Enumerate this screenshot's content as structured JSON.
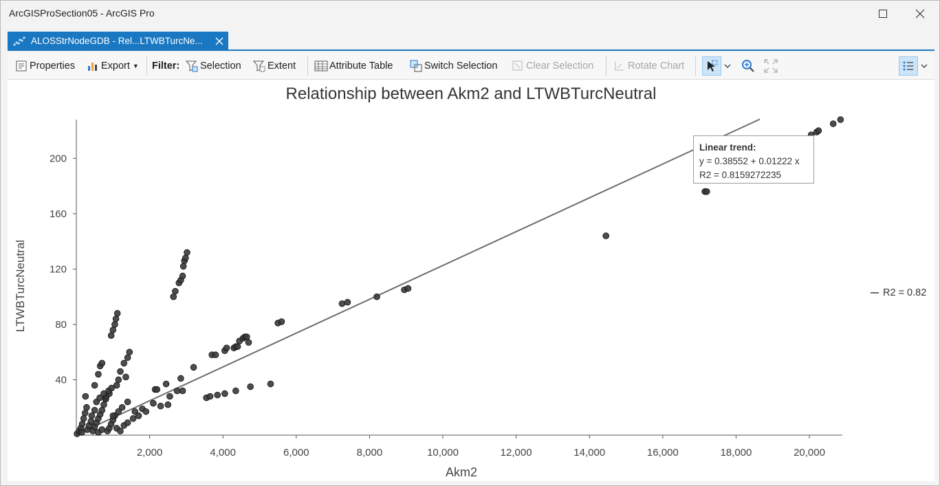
{
  "window": {
    "title": "ArcGISProSection05 - ArcGIS Pro"
  },
  "tab": {
    "label": "ALOSStrNodeGDB - Rel...LTWBTurcNe..."
  },
  "toolbar": {
    "properties": "Properties",
    "export": "Export",
    "filter_label": "Filter:",
    "selection": "Selection",
    "extent": "Extent",
    "attribute_table": "Attribute Table",
    "switch_selection": "Switch Selection",
    "clear_selection": "Clear Selection",
    "rotate_chart": "Rotate Chart"
  },
  "colors": {
    "accent": "#1a78c2",
    "point": "#3a3a3a",
    "trend": "#6e6e6e"
  },
  "trend": {
    "tooltip_title": "Linear trend:",
    "equation": "y = 0.38552 + 0.01222 x",
    "r2_full": "R2 = 0.8159272235",
    "legend": "R2 = 0.82",
    "intercept": 0.38552,
    "slope": 0.01222
  },
  "chart_data": {
    "type": "scatter",
    "title": "Relationship between Akm2 and LTWBTurcNeutral",
    "xlabel": "Akm2",
    "ylabel": "LTWBTurcNeutral",
    "xlim": [
      0,
      20900
    ],
    "ylim": [
      0,
      228
    ],
    "xticks": [
      2000,
      4000,
      6000,
      8000,
      10000,
      12000,
      14000,
      16000,
      18000,
      20000
    ],
    "xtick_labels": [
      "2,000",
      "4,000",
      "6,000",
      "8,000",
      "10,000",
      "12,000",
      "14,000",
      "16,000",
      "18,000",
      "20,000"
    ],
    "yticks": [
      40,
      80,
      120,
      160,
      200
    ],
    "ytick_labels": [
      "40",
      "80",
      "120",
      "160",
      "200"
    ],
    "trendline": {
      "x": [
        0,
        18650
      ],
      "y": [
        0.39,
        228.3
      ]
    },
    "points": [
      [
        20,
        1
      ],
      [
        80,
        3
      ],
      [
        120,
        5
      ],
      [
        160,
        8
      ],
      [
        200,
        12
      ],
      [
        240,
        16
      ],
      [
        280,
        20
      ],
      [
        150,
        2
      ],
      [
        300,
        4
      ],
      [
        350,
        7
      ],
      [
        400,
        10
      ],
      [
        420,
        14
      ],
      [
        450,
        3
      ],
      [
        500,
        6
      ],
      [
        550,
        9
      ],
      [
        600,
        12
      ],
      [
        650,
        15
      ],
      [
        700,
        18
      ],
      [
        750,
        22
      ],
      [
        800,
        26
      ],
      [
        850,
        3
      ],
      [
        900,
        5
      ],
      [
        950,
        8
      ],
      [
        1000,
        11
      ],
      [
        1050,
        14
      ],
      [
        1150,
        17
      ],
      [
        1250,
        20
      ],
      [
        1400,
        24
      ],
      [
        1600,
        17
      ],
      [
        1800,
        19
      ],
      [
        1100,
        5
      ],
      [
        1300,
        7
      ],
      [
        1400,
        9
      ],
      [
        1200,
        3
      ],
      [
        600,
        2
      ],
      [
        700,
        4
      ],
      [
        250,
        28
      ],
      [
        500,
        36
      ],
      [
        600,
        44
      ],
      [
        650,
        50
      ],
      [
        700,
        52
      ],
      [
        800,
        26
      ],
      [
        820,
        28
      ],
      [
        900,
        30
      ],
      [
        1000,
        14
      ],
      [
        1100,
        36
      ],
      [
        1200,
        46
      ],
      [
        1300,
        52
      ],
      [
        1400,
        56
      ],
      [
        1450,
        60
      ],
      [
        950,
        72
      ],
      [
        1000,
        76
      ],
      [
        1050,
        80
      ],
      [
        1080,
        84
      ],
      [
        1120,
        88
      ],
      [
        1150,
        40
      ],
      [
        1350,
        42
      ],
      [
        2650,
        100
      ],
      [
        2700,
        104
      ],
      [
        2800,
        110
      ],
      [
        2850,
        112
      ],
      [
        2900,
        115
      ],
      [
        2920,
        122
      ],
      [
        2950,
        126
      ],
      [
        2980,
        128
      ],
      [
        3020,
        132
      ],
      [
        2100,
        23
      ],
      [
        2150,
        33
      ],
      [
        2200,
        33
      ],
      [
        2450,
        37
      ],
      [
        2500,
        22
      ],
      [
        2550,
        28
      ],
      [
        2750,
        32
      ],
      [
        2850,
        41
      ],
      [
        2900,
        32
      ],
      [
        3200,
        49
      ],
      [
        3550,
        27
      ],
      [
        3650,
        28
      ],
      [
        3700,
        58
      ],
      [
        3800,
        58
      ],
      [
        3850,
        29
      ],
      [
        4050,
        30
      ],
      [
        4050,
        61
      ],
      [
        4100,
        63
      ],
      [
        4300,
        63
      ],
      [
        4350,
        64
      ],
      [
        4400,
        64
      ],
      [
        4450,
        68
      ],
      [
        4550,
        70
      ],
      [
        4600,
        71
      ],
      [
        4650,
        71
      ],
      [
        4700,
        67
      ],
      [
        4350,
        32
      ],
      [
        4750,
        35
      ],
      [
        5300,
        37
      ],
      [
        5500,
        81
      ],
      [
        5600,
        82
      ],
      [
        7250,
        95
      ],
      [
        7400,
        96
      ],
      [
        8200,
        100
      ],
      [
        8950,
        105
      ],
      [
        9050,
        106
      ],
      [
        14450,
        144
      ],
      [
        17150,
        176
      ],
      [
        17200,
        176
      ],
      [
        20050,
        217
      ],
      [
        20200,
        219
      ],
      [
        20250,
        220
      ],
      [
        20650,
        225
      ],
      [
        20850,
        228
      ],
      [
        1550,
        12
      ],
      [
        1700,
        14
      ],
      [
        1900,
        17
      ],
      [
        2300,
        21
      ],
      [
        500,
        18
      ],
      [
        550,
        24
      ],
      [
        640,
        27
      ],
      [
        750,
        30
      ],
      [
        880,
        32
      ],
      [
        960,
        34
      ]
    ]
  }
}
